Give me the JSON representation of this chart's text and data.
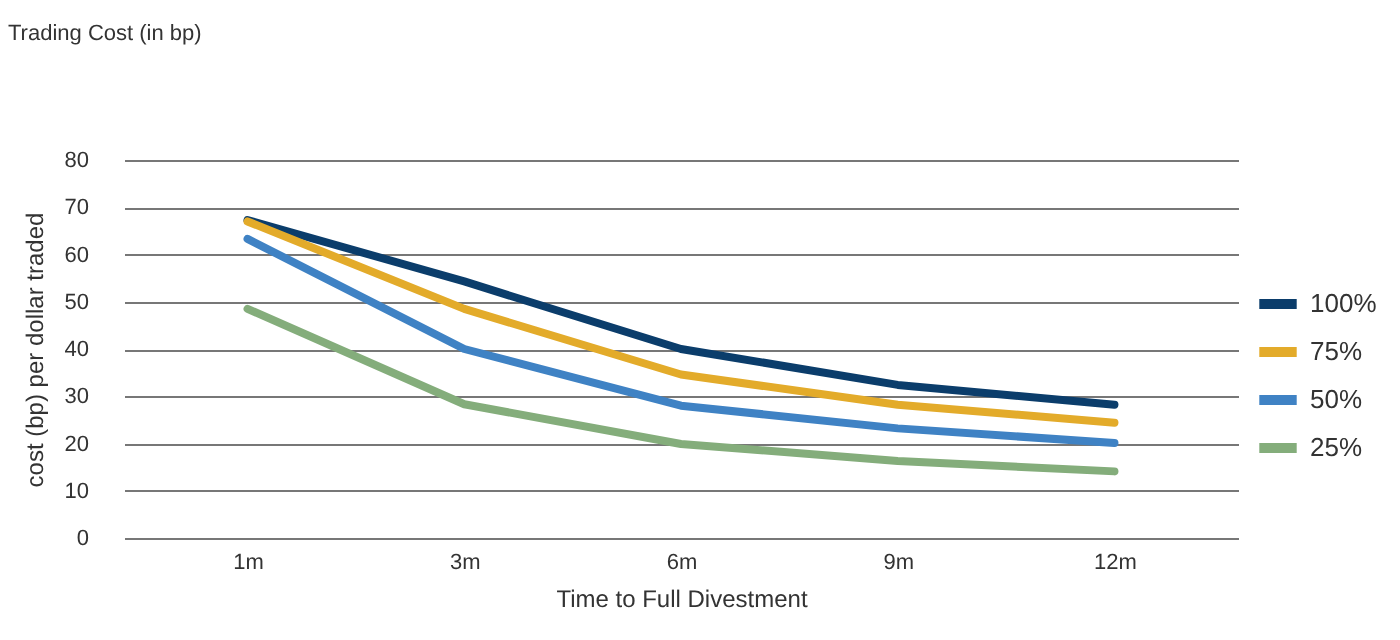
{
  "chart_data": {
    "type": "line",
    "title": "Trading Cost (in bp)",
    "xlabel": "Time to Full Divestment",
    "ylabel": "cost (bp) per dollar traded",
    "categories": [
      "1m",
      "3m",
      "6m",
      "9m",
      "12m"
    ],
    "series": [
      {
        "name": "100%",
        "color": "#0b3d6b",
        "values": [
          67.3,
          54.3,
          40,
          32.4,
          28.2
        ]
      },
      {
        "name": "75%",
        "color": "#e3ab2a",
        "values": [
          67,
          48.5,
          34.6,
          28.2,
          24.4
        ]
      },
      {
        "name": "50%",
        "color": "#3f82c4",
        "values": [
          63.3,
          40,
          28,
          23.2,
          20.1
        ]
      },
      {
        "name": "25%",
        "color": "#84ad7b",
        "values": [
          48.5,
          28.3,
          19.9,
          16.3,
          14.1
        ]
      }
    ],
    "ylim": [
      0,
      80
    ],
    "yticks": [
      0,
      10,
      20,
      30,
      40,
      50,
      60,
      70,
      80
    ],
    "grid": "y",
    "legend": "right",
    "marker": "none",
    "line_style": "solid"
  }
}
